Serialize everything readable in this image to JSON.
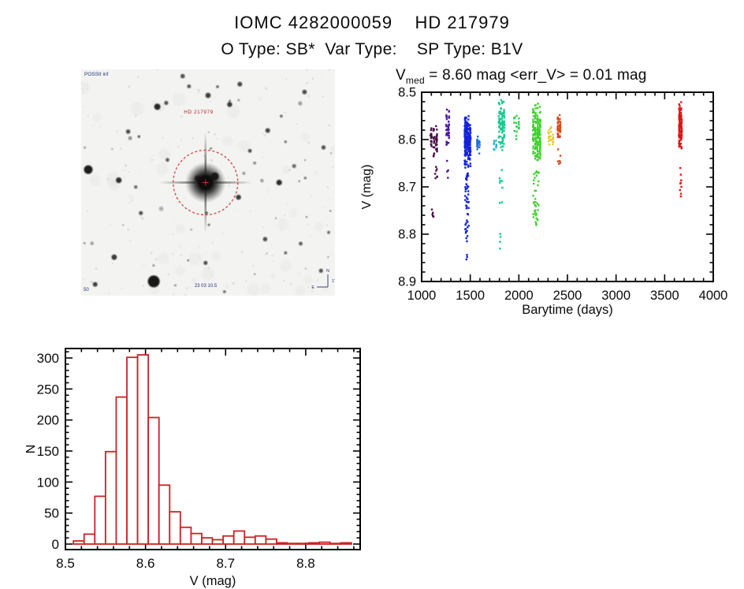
{
  "header": {
    "title": "IOMC 4282000059    HD 217979",
    "subtitle": "O Type: SB*  Var Type:    SP Type: B1V"
  },
  "colors": {
    "axis": "#000000",
    "histogram_red": "#cc2222",
    "finder_bg": "#f3f3f1",
    "finder_annotation": "#223377",
    "finder_marker_red": "#cc3333"
  },
  "finder": {
    "survey_label": "POSSII inf",
    "target_label": "HD 217979",
    "bottom_label": "23 03 10.5",
    "corner_label": "50",
    "compass": {
      "north_label": "N",
      "east_label": "E",
      "scale_label": "1'"
    },
    "seed": 20590159,
    "n_field_stars": 42,
    "n_noise_dots": 150,
    "n_blotches": 40,
    "circle": {
      "fx": 0.49,
      "fy": 0.5,
      "r": 41
    },
    "notable_stars": [
      [
        0.286,
        0.937,
        7.5,
        0.95
      ],
      [
        0.028,
        0.443,
        5.5,
        0.92
      ],
      [
        0.148,
        0.49,
        3.6,
        0.85
      ],
      [
        0.3,
        0.165,
        4.0,
        0.88
      ],
      [
        0.335,
        0.148,
        2.6,
        0.7
      ],
      [
        0.5,
        0.115,
        3.4,
        0.78
      ],
      [
        0.4,
        0.03,
        2.8,
        0.7
      ],
      [
        0.625,
        0.065,
        3.0,
        0.75
      ],
      [
        0.585,
        0.155,
        3.2,
        0.8
      ],
      [
        0.78,
        0.5,
        3.6,
        0.85
      ],
      [
        0.62,
        0.565,
        3.2,
        0.8
      ],
      [
        0.725,
        0.75,
        2.8,
        0.72
      ],
      [
        0.13,
        0.83,
        3.4,
        0.8
      ],
      [
        0.955,
        0.345,
        2.7,
        0.7
      ],
      [
        0.735,
        0.27,
        3.0,
        0.75
      ],
      [
        0.88,
        0.1,
        2.9,
        0.72
      ],
      [
        0.055,
        0.95,
        3.0,
        0.78
      ],
      [
        0.49,
        0.855,
        2.6,
        0.7
      ],
      [
        0.665,
        0.36,
        2.4,
        0.72
      ],
      [
        0.185,
        0.275,
        2.8,
        0.72
      ],
      [
        0.425,
        0.075,
        2.4,
        0.68
      ],
      [
        0.235,
        0.635,
        2.6,
        0.7
      ],
      [
        0.865,
        0.77,
        2.4,
        0.66
      ],
      [
        0.945,
        0.89,
        2.6,
        0.7
      ],
      [
        0.34,
        0.4,
        2.4,
        0.66
      ],
      [
        0.215,
        0.52,
        2.2,
        0.6
      ]
    ]
  },
  "chart_data": [
    {
      "type": "scatter",
      "name": "lightcurve",
      "title_parts": {
        "base": "V",
        "sub": "med",
        "rest": " = 8.60 mag <err_V> = 0.01 mag"
      },
      "xlabel": "Barytime (days)",
      "ylabel": "V (mag)",
      "xlim": [
        1000,
        4000
      ],
      "ylim": [
        8.5,
        8.9
      ],
      "y_inverted": true,
      "xticks": [
        1000,
        1500,
        2000,
        2500,
        3000,
        3500,
        4000
      ],
      "yticks": [
        8.5,
        8.6,
        8.7,
        8.8,
        8.9
      ],
      "x_minor_step": 100,
      "y_minor_step": 0.02,
      "grid": false,
      "legend": false,
      "clusters": [
        {
          "color": "#4a0d46",
          "columns": 3,
          "n": 55,
          "days": [
            1085,
            1165
          ],
          "mag": [
            8.565,
            8.645
          ],
          "tails": [
            {
              "n": 7,
              "days": [
                1130,
                1162
              ],
              "mag": [
                8.65,
                8.685
              ]
            },
            {
              "n": 5,
              "days": [
                1105,
                1125
              ],
              "mag": [
                8.72,
                8.775
              ]
            }
          ]
        },
        {
          "color": "#4a16a2",
          "columns": 2,
          "n": 42,
          "days": [
            1248,
            1288
          ],
          "mag": [
            8.525,
            8.63
          ],
          "tails": [
            {
              "n": 4,
              "days": [
                1255,
                1278
              ],
              "mag": [
                8.64,
                8.685
              ]
            }
          ]
        },
        {
          "color": "#1423dd",
          "columns": 4,
          "n": 200,
          "days": [
            1438,
            1508
          ],
          "mag": [
            8.545,
            8.67
          ],
          "tails": [
            {
              "n": 42,
              "days": [
                1448,
                1485
              ],
              "mag": [
                8.67,
                8.79
              ]
            },
            {
              "n": 9,
              "days": [
                1452,
                1478
              ],
              "mag": [
                8.79,
                8.855
              ]
            }
          ]
        },
        {
          "color": "#1a6fdd",
          "columns": 2,
          "n": 22,
          "days": [
            1565,
            1602
          ],
          "mag": [
            8.588,
            8.635
          ],
          "tails": []
        },
        {
          "color": "#2fb0d4",
          "columns": 2,
          "n": 10,
          "days": [
            1735,
            1778
          ],
          "mag": [
            8.598,
            8.625
          ],
          "tails": []
        },
        {
          "color": "#17c98f",
          "columns": 4,
          "n": 90,
          "days": [
            1788,
            1858
          ],
          "mag": [
            8.51,
            8.638
          ],
          "tails": [
            {
              "n": 8,
              "days": [
                1798,
                1832
              ],
              "mag": [
                8.66,
                8.755
              ]
            },
            {
              "n": 4,
              "days": [
                1802,
                1826
              ],
              "mag": [
                8.795,
                8.835
              ]
            }
          ]
        },
        {
          "color": "#2ed049",
          "columns": 3,
          "n": 18,
          "days": [
            1945,
            2008
          ],
          "mag": [
            8.545,
            8.605
          ],
          "tails": []
        },
        {
          "color": "#3fd32e",
          "columns": 4,
          "n": 180,
          "days": [
            2138,
            2228
          ],
          "mag": [
            8.52,
            8.665
          ],
          "tails": [
            {
              "n": 40,
              "days": [
                2148,
                2205
              ],
              "mag": [
                8.665,
                8.785
              ]
            }
          ]
        },
        {
          "color": "#e2ca1d",
          "columns": 3,
          "n": 22,
          "days": [
            2298,
            2362
          ],
          "mag": [
            8.565,
            8.615
          ],
          "tails": []
        },
        {
          "color": "#d4491c",
          "columns": 2,
          "n": 38,
          "days": [
            2392,
            2434
          ],
          "mag": [
            8.535,
            8.615
          ],
          "tails": [
            {
              "n": 6,
              "days": [
                2398,
                2428
              ],
              "mag": [
                8.62,
                8.655
              ]
            }
          ]
        },
        {
          "color": "#e31313",
          "columns": 2,
          "n": 115,
          "days": [
            3642,
            3682
          ],
          "mag": [
            8.515,
            8.635
          ],
          "tails": [
            {
              "n": 9,
              "days": [
                3650,
                3674
              ],
              "mag": [
                8.64,
                8.735
              ]
            }
          ]
        }
      ]
    },
    {
      "type": "bar",
      "name": "v-histogram",
      "xlabel": "V (mag)",
      "ylabel": "N",
      "xlim": [
        8.5,
        8.868
      ],
      "ylim": [
        -10,
        318
      ],
      "xticks": [
        8.5,
        8.6,
        8.7,
        8.8
      ],
      "yticks": [
        0,
        50,
        100,
        150,
        200,
        250,
        300
      ],
      "x_minor_step": 0.02,
      "y_minor_step": 10,
      "grid": false,
      "bar_color": "#cc2222",
      "bin_start": 8.51,
      "bin_width": 0.01335,
      "counts": [
        5,
        16,
        77,
        149,
        237,
        301,
        305,
        204,
        95,
        52,
        27,
        17,
        10,
        7,
        13,
        21,
        11,
        13,
        8,
        2,
        1,
        1,
        2,
        3,
        1,
        2
      ]
    }
  ]
}
